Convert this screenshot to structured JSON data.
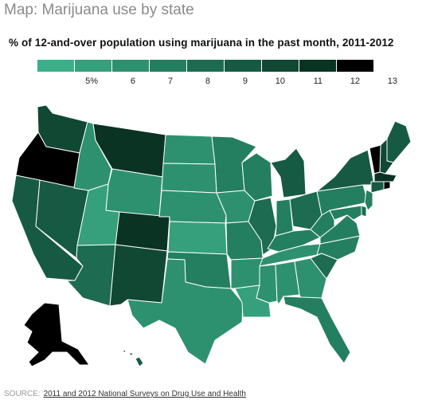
{
  "title": "Map: Marijuana use by state",
  "subtitle": "% of 12-and-over population using marijuana in the past month, 2011-2012",
  "legend": {
    "colors": [
      "#3daf88",
      "#35a07b",
      "#2d9170",
      "#247f60",
      "#1d6b51",
      "#175a44",
      "#104834",
      "#0a3323",
      "#000000"
    ],
    "ticks": [
      "5%",
      "6",
      "7",
      "8",
      "9",
      "10",
      "11",
      "12",
      "13"
    ]
  },
  "source": {
    "label": "SOURCE:",
    "text": "2011 and 2012 National Surveys on Drug Use and Health"
  },
  "map_data": {
    "states": [
      {
        "name": "WA",
        "bin": 6
      },
      {
        "name": "OR",
        "bin": 9
      },
      {
        "name": "CA",
        "bin": 5
      },
      {
        "name": "NV",
        "bin": 5
      },
      {
        "name": "ID",
        "bin": 2
      },
      {
        "name": "MT",
        "bin": 7
      },
      {
        "name": "WY",
        "bin": 2
      },
      {
        "name": "UT",
        "bin": 1
      },
      {
        "name": "CO",
        "bin": 7
      },
      {
        "name": "AZ",
        "bin": 4
      },
      {
        "name": "NM",
        "bin": 6
      },
      {
        "name": "ND",
        "bin": 2
      },
      {
        "name": "SD",
        "bin": 2
      },
      {
        "name": "NE",
        "bin": 2
      },
      {
        "name": "KS",
        "bin": 1
      },
      {
        "name": "OK",
        "bin": 3
      },
      {
        "name": "TX",
        "bin": 2
      },
      {
        "name": "MN",
        "bin": 3
      },
      {
        "name": "IA",
        "bin": 2
      },
      {
        "name": "MO",
        "bin": 3
      },
      {
        "name": "AR",
        "bin": 2
      },
      {
        "name": "LA",
        "bin": 1
      },
      {
        "name": "WI",
        "bin": 3
      },
      {
        "name": "IL",
        "bin": 4
      },
      {
        "name": "MI",
        "bin": 5
      },
      {
        "name": "IN",
        "bin": 3
      },
      {
        "name": "OH",
        "bin": 4
      },
      {
        "name": "KY",
        "bin": 3
      },
      {
        "name": "TN",
        "bin": 2
      },
      {
        "name": "MS",
        "bin": 2
      },
      {
        "name": "AL",
        "bin": 2
      },
      {
        "name": "GA",
        "bin": 2
      },
      {
        "name": "FL",
        "bin": 3
      },
      {
        "name": "SC",
        "bin": 4
      },
      {
        "name": "NC",
        "bin": 3
      },
      {
        "name": "VA",
        "bin": 3
      },
      {
        "name": "WV",
        "bin": 3
      },
      {
        "name": "PA",
        "bin": 3
      },
      {
        "name": "NY",
        "bin": 5
      },
      {
        "name": "ME",
        "bin": 5
      },
      {
        "name": "NH",
        "bin": 6
      },
      {
        "name": "VT",
        "bin": 9
      },
      {
        "name": "MA",
        "bin": 7
      },
      {
        "name": "CT",
        "bin": 5
      },
      {
        "name": "RI",
        "bin": 8
      },
      {
        "name": "NJ",
        "bin": 3
      },
      {
        "name": "DE",
        "bin": 4
      },
      {
        "name": "MD",
        "bin": 3
      },
      {
        "name": "AK",
        "bin": 9
      },
      {
        "name": "HI",
        "bin": 5
      }
    ]
  }
}
